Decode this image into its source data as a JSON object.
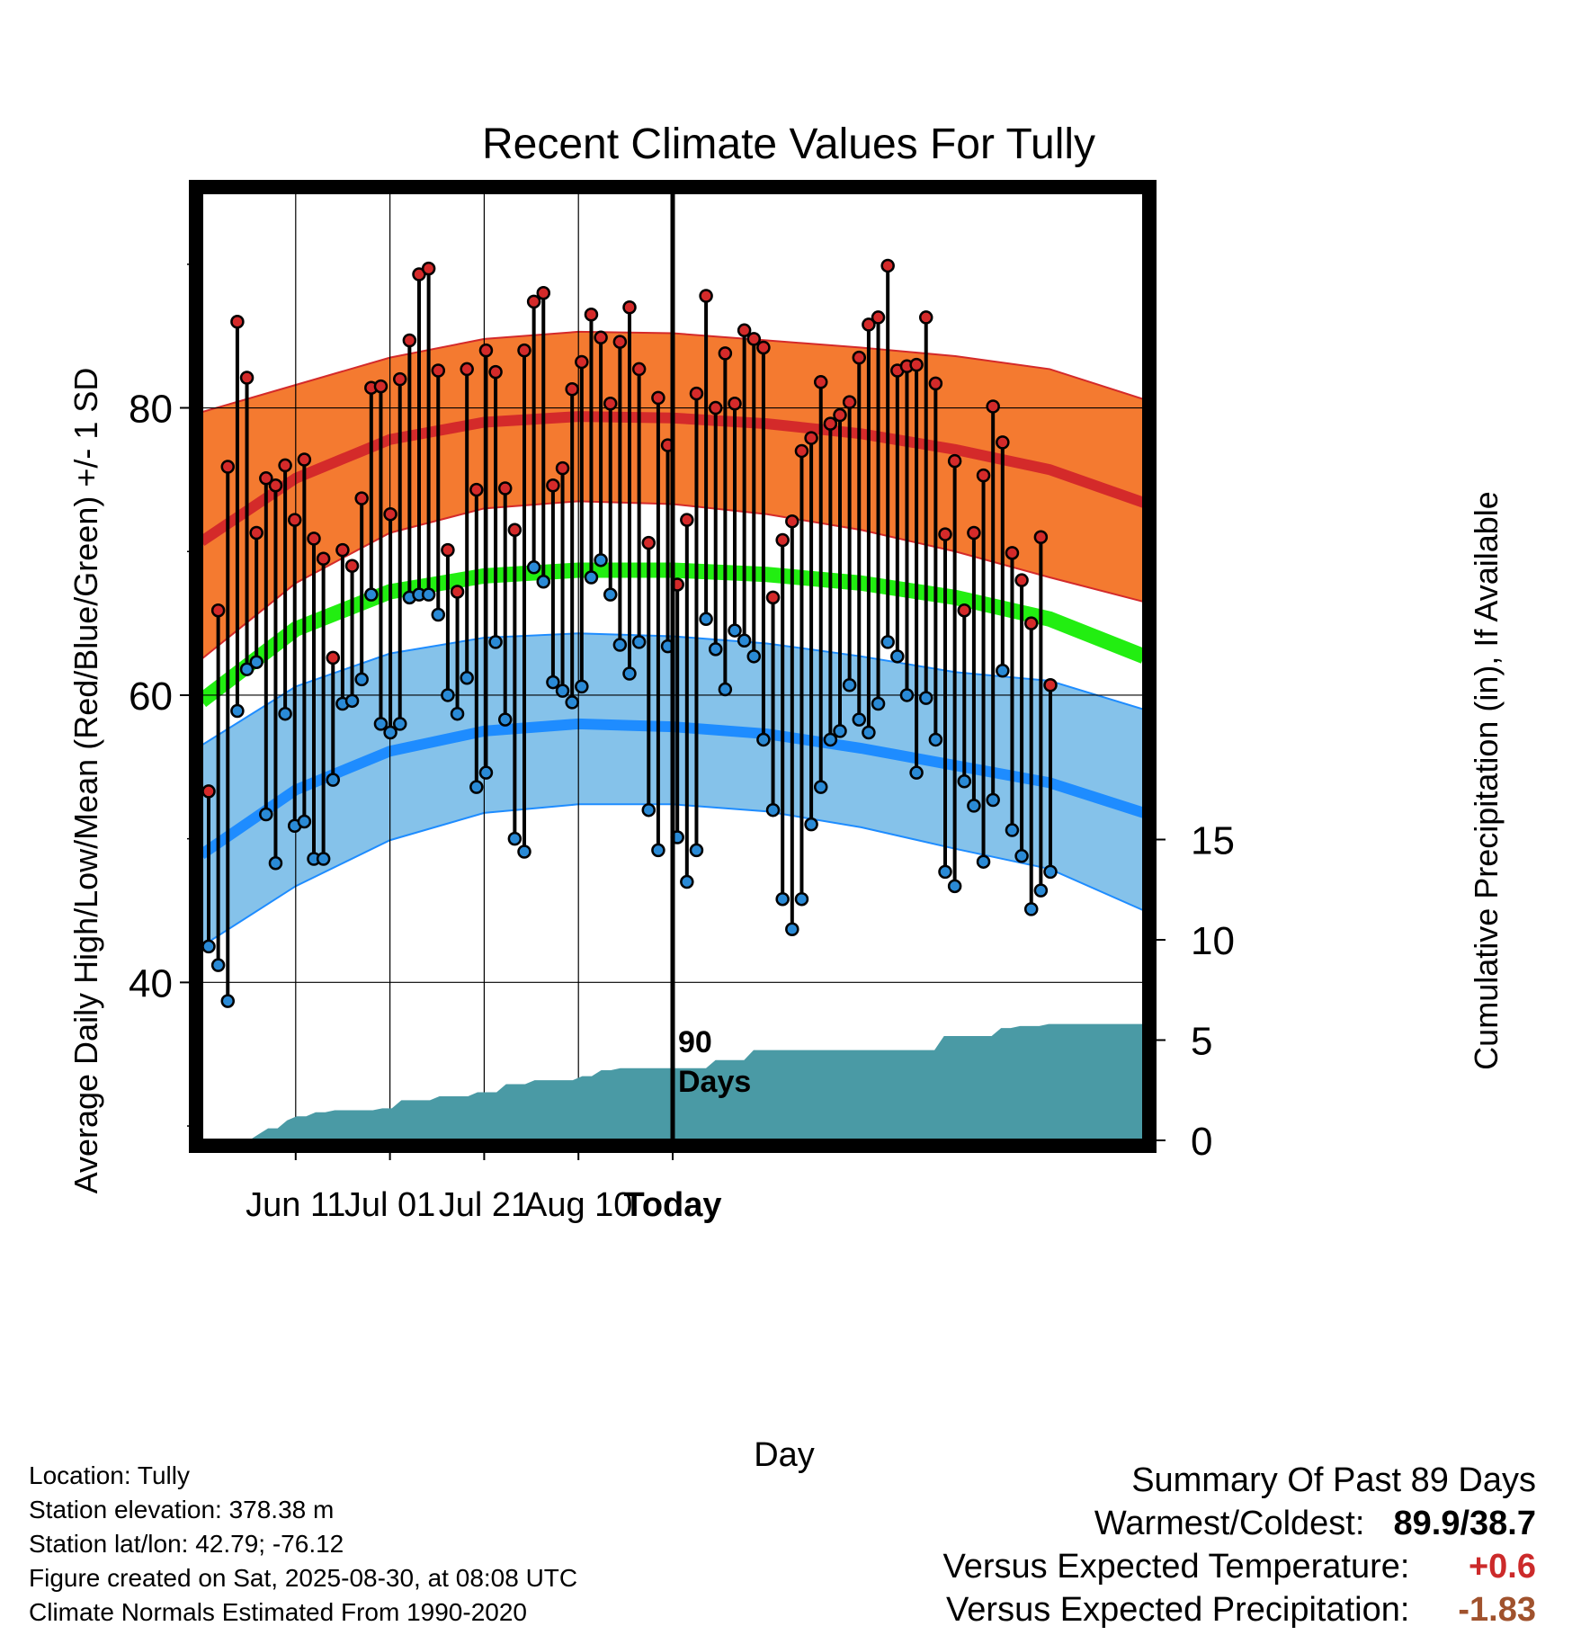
{
  "chart_data": {
    "type": "line",
    "title": "Recent Climate Values For Tully",
    "xlabel": "Day",
    "ylabel": "Average Daily High/Low/Mean (Red/Blue/Green) +/- 1 SD",
    "y2label": "Cumulative Precipitation (in), If Available",
    "xlim": [
      -11,
      9
    ],
    "ylim": [
      29,
      95
    ],
    "y2lim": [
      0,
      20
    ],
    "x_ticks": [
      {
        "x": -9,
        "label": "Jun 11"
      },
      {
        "x": -7,
        "label": "Jul 01"
      },
      {
        "x": -5,
        "label": "Jul 21"
      },
      {
        "x": -3,
        "label": "Aug 10"
      },
      {
        "x": -1,
        "label": "Today"
      }
    ],
    "y_ticks": [
      40,
      60,
      80
    ],
    "y_minor_ticks": [
      30,
      50,
      70,
      90
    ],
    "y2_ticks": [
      0,
      5,
      10,
      15
    ],
    "today_marker": {
      "x": -1,
      "label": "90\nDays"
    },
    "grid": true,
    "colors": {
      "high_band": "#f47a30",
      "high_mean": "#d42a2a",
      "low_band": "#85c2ea",
      "low_mean": "#1e8cff",
      "mean": "#22ee11",
      "precip": "#4a9aa5",
      "high_point": "#d42a2a",
      "low_point": "#2a8ad6",
      "positive": "#cc2a2a",
      "precip_value": "#a0522d"
    },
    "normals": {
      "days": [
        0,
        10,
        20,
        30,
        40,
        50,
        60,
        70,
        80,
        90,
        100
      ],
      "high_mean": [
        70.7,
        75.1,
        77.8,
        79.0,
        79.4,
        79.3,
        78.9,
        78.2,
        77.1,
        75.7,
        73.4
      ],
      "high_upper": [
        79.7,
        81.6,
        83.5,
        84.8,
        85.3,
        85.2,
        84.7,
        84.2,
        83.6,
        82.7,
        80.6
      ],
      "high_lower": [
        62.5,
        67.8,
        71.3,
        73.0,
        73.5,
        73.3,
        72.6,
        71.5,
        70.0,
        68.2,
        66.5
      ],
      "mean": [
        59.6,
        64.6,
        67.2,
        68.3,
        68.7,
        68.7,
        68.4,
        67.8,
        66.8,
        65.3,
        62.7
      ],
      "low_mean": [
        48.9,
        53.4,
        56.1,
        57.5,
        58.0,
        57.8,
        57.3,
        56.3,
        55.1,
        53.9,
        51.8
      ],
      "low_upper": [
        56.5,
        60.6,
        62.9,
        64.0,
        64.3,
        64.1,
        63.6,
        62.7,
        61.6,
        61.0,
        59.0
      ],
      "low_lower": [
        42.5,
        46.7,
        49.9,
        51.8,
        52.4,
        52.4,
        51.9,
        50.8,
        49.3,
        47.9,
        45.0
      ]
    },
    "series": [
      {
        "name": "High",
        "values": [
          53.3,
          65.9,
          75.9,
          86.0,
          82.1,
          71.3,
          75.1,
          74.6,
          76.0,
          72.2,
          76.4,
          70.9,
          69.5,
          62.6,
          70.1,
          69.0,
          73.7,
          81.4,
          81.5,
          72.6,
          82.0,
          84.7,
          89.3,
          89.7,
          82.6,
          70.1,
          67.2,
          82.7,
          74.3,
          84.0,
          82.5,
          74.4,
          71.5,
          84.0,
          87.4,
          88.0,
          74.6,
          75.8,
          81.3,
          83.2,
          86.5,
          84.9,
          80.3,
          84.6,
          87.0,
          82.7,
          70.6,
          80.7,
          77.4,
          67.7,
          72.2,
          81.0,
          87.8,
          80.0,
          83.8,
          80.3,
          85.4,
          84.8,
          84.2,
          66.8,
          70.8,
          72.1,
          77.0,
          77.9,
          81.8,
          78.9,
          79.5,
          80.4,
          83.5,
          85.8,
          86.3,
          89.9,
          82.6,
          82.9,
          83.0,
          86.3,
          81.7,
          71.2,
          76.3,
          65.9,
          71.3,
          75.3,
          80.1,
          77.6,
          69.9,
          68.0,
          65.0,
          71.0,
          60.7
        ],
        "color": "#d42a2a"
      },
      {
        "name": "Low",
        "values": [
          42.5,
          41.2,
          38.7,
          58.9,
          61.8,
          62.3,
          51.7,
          48.3,
          58.7,
          50.9,
          51.2,
          48.6,
          48.6,
          54.1,
          59.4,
          59.6,
          61.1,
          67.0,
          58.0,
          57.4,
          58.0,
          66.8,
          67.0,
          67.0,
          65.6,
          60.0,
          58.7,
          61.2,
          53.6,
          54.6,
          63.7,
          58.3,
          50.0,
          49.1,
          68.9,
          67.9,
          60.9,
          60.3,
          59.5,
          60.6,
          68.2,
          69.4,
          67.0,
          63.5,
          61.5,
          63.7,
          52.0,
          49.2,
          63.4,
          50.1,
          47.0,
          49.2,
          65.3,
          63.2,
          60.4,
          64.5,
          63.8,
          62.7,
          56.9,
          52.0,
          45.8,
          43.7,
          45.8,
          51.0,
          53.6,
          56.9,
          57.5,
          60.7,
          58.3,
          57.4,
          59.4,
          63.7,
          62.7,
          60.0,
          54.6,
          59.8,
          56.9,
          47.7,
          46.7,
          54.0,
          52.3,
          48.4,
          52.7,
          61.7,
          50.6,
          48.8,
          45.1,
          46.4,
          47.7
        ],
        "color": "#2a8ad6"
      }
    ],
    "precip_cumulative": [
      0.0,
      0.0,
      0.0,
      0.0,
      0.0,
      0.0,
      0.3,
      0.6,
      0.6,
      1.0,
      1.2,
      1.2,
      1.4,
      1.4,
      1.5,
      1.5,
      1.5,
      1.5,
      1.5,
      1.6,
      1.6,
      2.0,
      2.0,
      2.0,
      2.0,
      2.2,
      2.2,
      2.2,
      2.2,
      2.4,
      2.4,
      2.4,
      2.8,
      2.8,
      2.8,
      3.0,
      3.0,
      3.0,
      3.0,
      3.0,
      3.2,
      3.2,
      3.5,
      3.5,
      3.6,
      3.6,
      3.6,
      3.6,
      3.6,
      3.6,
      3.6,
      3.6,
      3.6,
      3.6,
      4.0,
      4.0,
      4.0,
      4.0,
      4.5,
      4.5,
      4.5,
      4.5,
      4.5,
      4.5,
      4.5,
      4.5,
      4.5,
      4.5,
      4.5,
      4.5,
      4.5,
      4.5,
      4.5,
      4.5,
      4.5,
      4.5,
      4.5,
      4.5,
      5.2,
      5.2,
      5.2,
      5.2,
      5.2,
      5.2,
      5.6,
      5.6,
      5.7,
      5.7,
      5.7,
      5.8,
      5.8,
      5.8,
      5.8,
      5.8,
      5.8,
      5.8,
      5.8,
      5.8,
      5.8,
      5.8
    ]
  },
  "info": {
    "location": "Location: Tully",
    "elevation": "Station elevation: 378.38 m",
    "latlon": "Station lat/lon: 42.79; -76.12",
    "created": "Figure created on Sat, 2025-08-30, at 08:08 UTC",
    "normals": "Climate Normals Estimated From 1990-2020"
  },
  "summary": {
    "title": "Summary Of Past 89 Days",
    "warm_cold_label": "Warmest/Coldest:",
    "warm_cold_value": "89.9/38.7",
    "temp_label": "Versus Expected Temperature:",
    "temp_value": "+0.6",
    "precip_label": "Versus Expected Precipitation:",
    "precip_value": "-1.83"
  }
}
